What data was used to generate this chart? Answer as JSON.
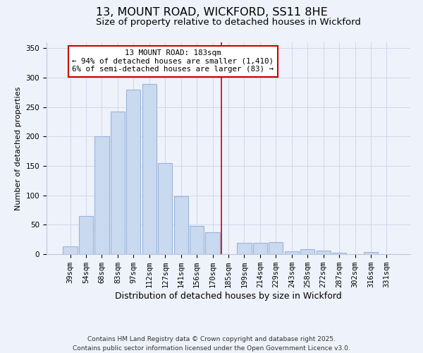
{
  "title": "13, MOUNT ROAD, WICKFORD, SS11 8HE",
  "subtitle": "Size of property relative to detached houses in Wickford",
  "xlabel": "Distribution of detached houses by size in Wickford",
  "ylabel": "Number of detached properties",
  "bar_labels": [
    "39sqm",
    "54sqm",
    "68sqm",
    "83sqm",
    "97sqm",
    "112sqm",
    "127sqm",
    "141sqm",
    "156sqm",
    "170sqm",
    "185sqm",
    "199sqm",
    "214sqm",
    "229sqm",
    "243sqm",
    "258sqm",
    "272sqm",
    "287sqm",
    "302sqm",
    "316sqm",
    "331sqm"
  ],
  "bar_values": [
    13,
    65,
    200,
    242,
    280,
    289,
    155,
    98,
    48,
    37,
    0,
    19,
    19,
    20,
    5,
    9,
    6,
    2,
    0,
    4,
    0
  ],
  "bar_color": "#c9d9f0",
  "bar_edge_color": "#9ab4d8",
  "vline_x_index": 10,
  "vline_color": "#cc0000",
  "annotation_title": "13 MOUNT ROAD: 183sqm",
  "annotation_line1": "← 94% of detached houses are smaller (1,410)",
  "annotation_line2": "6% of semi-detached houses are larger (83) →",
  "annotation_box_color": "#cc0000",
  "ylim": [
    0,
    360
  ],
  "yticks": [
    0,
    50,
    100,
    150,
    200,
    250,
    300,
    350
  ],
  "grid_color": "#d0d8ea",
  "background_color": "#eef2fa",
  "footer1": "Contains HM Land Registry data © Crown copyright and database right 2025.",
  "footer2": "Contains public sector information licensed under the Open Government Licence v3.0.",
  "title_fontsize": 11.5,
  "subtitle_fontsize": 9.5,
  "xlabel_fontsize": 9,
  "ylabel_fontsize": 8,
  "tick_fontsize": 7.5,
  "annotation_fontsize": 7.8,
  "footer_fontsize": 6.5
}
